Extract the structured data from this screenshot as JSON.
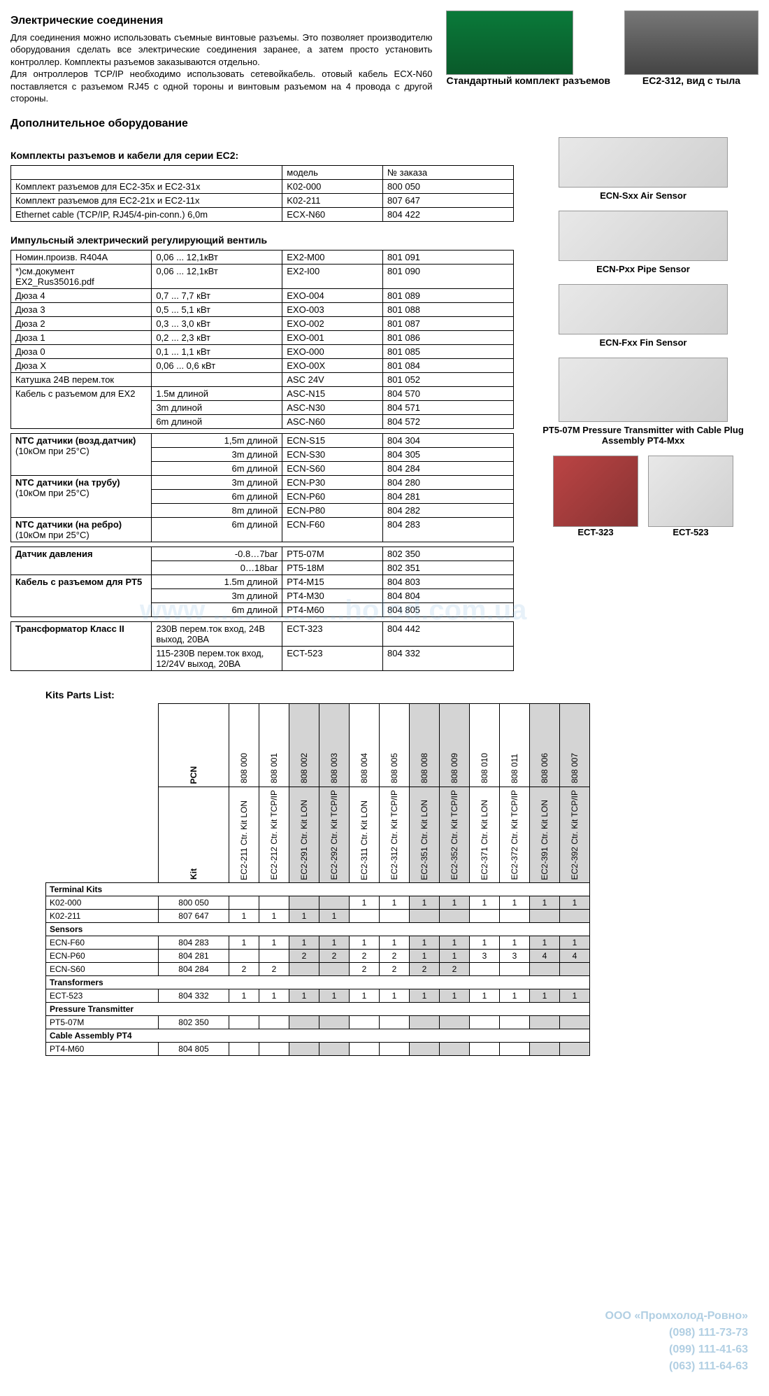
{
  "header": {
    "title": "Электрические соединения",
    "para1": "Для соединения можно использовать съемные винтовые разъемы. Это позволяет производителю оборудования сделать все электрические соединения заранее, а затем просто установить контроллер. Комплекты разъемов заказываются отдельно.",
    "para2": "Для онтроллеров TCP/IP необходимо использовать сетевойкабель. отовый кабель ECX-N60 поставляется с разъемом RJ45 с одной тороны и винтовым разъемом на 4 провода с другой стороны.",
    "img1_label": "Стандартный комплект разъемов",
    "img2_label": "EC2-312, вид с тыла"
  },
  "addl_title": "Дополнительное оборудование",
  "table1": {
    "title": "Комплекты разъемов и кабели для серии EC2:",
    "hdr_model": "модель",
    "hdr_order": "№ заказа",
    "rows": [
      {
        "desc": "Комплект разъемов для EC2-35x и EC2-31x",
        "model": "K02-000",
        "order": "800 050"
      },
      {
        "desc": "Комплект разъемов для EC2-21x и EC2-11x",
        "model": "K02-211",
        "order": "807 647"
      },
      {
        "desc": "Ethernet cable (TCP/IP, RJ45/4-pin-conn.)          6,0m",
        "model": "ECX-N60",
        "order": "804 422"
      }
    ]
  },
  "table2": {
    "title": "Импульсный электрический регулирующий вентиль",
    "rows": [
      {
        "c1": "Номин.произв. R404A",
        "c2": "0,06 ... 12,1кВт",
        "c3": "EX2-M00",
        "c4": "801 091"
      },
      {
        "c1": "*)см.документ EX2_Rus35016.pdf",
        "c2": "0,06 ... 12,1кВт",
        "c3": "EX2-I00",
        "c4": "801 090"
      },
      {
        "c1": "Дюза 4",
        "c2": "0,7 ... 7,7 кВт",
        "c3": "EXO-004",
        "c4": "801 089"
      },
      {
        "c1": "Дюза 3",
        "c2": "0,5 ... 5,1 кВт",
        "c3": "EXO-003",
        "c4": "801 088"
      },
      {
        "c1": "Дюза 2",
        "c2": "0,3 ... 3,0 кВт",
        "c3": "EXO-002",
        "c4": "801 087"
      },
      {
        "c1": "Дюза 1",
        "c2": "0,2 ... 2,3 кВт",
        "c3": "EXO-001",
        "c4": "801 086"
      },
      {
        "c1": "Дюза 0",
        "c2": "0,1 ... 1,1 кВт",
        "c3": "EXO-000",
        "c4": "801 085"
      },
      {
        "c1": "Дюза X",
        "c2": "0,06 ... 0,6 кВт",
        "c3": "EXO-00X",
        "c4": "801 084"
      },
      {
        "c1": "Катушка 24В перем.ток",
        "c2": "",
        "c3": "ASC 24V",
        "c4": "801 052"
      }
    ],
    "cable_label": "Кабель с разъемом для EX2",
    "cable_rows": [
      {
        "c2": "1.5м длиной",
        "c3": "ASC-N15",
        "c4": "804 570"
      },
      {
        "c2": "3m длиной",
        "c3": "ASC-N30",
        "c4": "804 571"
      },
      {
        "c2": "6m длиной",
        "c3": "ASC-N60",
        "c4": "804 572"
      }
    ]
  },
  "table3": {
    "g1_label": "NTC датчики (возд.датчик)",
    "g_sub": "(10кОм при 25°C)",
    "g1_rows": [
      {
        "c2": "1,5m длиной",
        "c3": "ECN-S15",
        "c4": "804 304"
      },
      {
        "c2": "3m длиной",
        "c3": "ECN-S30",
        "c4": "804 305"
      },
      {
        "c2": "6m длиной",
        "c3": "ECN-S60",
        "c4": "804 284"
      }
    ],
    "g2_label": "NTC датчики (на трубу)",
    "g2_rows": [
      {
        "c2": "3m длиной",
        "c3": "ECN-P30",
        "c4": "804 280"
      },
      {
        "c2": "6m длиной",
        "c3": "ECN-P60",
        "c4": "804 281"
      },
      {
        "c2": "8m длиной",
        "c3": "ECN-P80",
        "c4": "804 282"
      }
    ],
    "g3_label": "NTC датчики (на ребро)",
    "g3_rows": [
      {
        "c2": "6m длиной",
        "c3": "ECN-F60",
        "c4": "804 283"
      }
    ]
  },
  "table4": {
    "press_label": "Датчик давления",
    "press_rows": [
      {
        "c2": "-0.8…7bar",
        "c3": "PT5-07M",
        "c4": "802 350"
      },
      {
        "c2": "0…18bar",
        "c3": "PT5-18M",
        "c4": "802 351"
      }
    ],
    "cable_label": "Кабель с разъемом для PT5",
    "cable_rows": [
      {
        "c2": "1.5m длиной",
        "c3": "PT4-M15",
        "c4": "804 803"
      },
      {
        "c2": "3m длиной",
        "c3": "PT4-M30",
        "c4": "804 804"
      },
      {
        "c2": "6m длиной",
        "c3": "PT4-M60",
        "c4": "804 805"
      }
    ]
  },
  "table5": {
    "label": "Трансформатор Класс II",
    "rows": [
      {
        "c2": "230В перем.ток вход, 24В выход, 20ВА",
        "c3": "ECT-323",
        "c4": "804 442"
      },
      {
        "c2": "115-230В перем.ток вход, 12/24V выход, 20ВА",
        "c3": "ECT-523",
        "c4": "804 332"
      }
    ]
  },
  "sensors": {
    "s1": "ECN-Sxx   Air Sensor",
    "s2": "ECN-Pxx   Pipe Sensor",
    "s3": "ECN-Fxx   Fin Sensor",
    "s4": "PT5-07M Pressure Transmitter with Cable Plug Assembly PT4-Mxx",
    "ect1": "ECT-323",
    "ect2": "ECT-523"
  },
  "kits": {
    "title": "Kits Parts List:",
    "hdr_pcn": "PCN",
    "hdr_kit": "Kit",
    "cols": [
      {
        "kit": "EC2-211 Ctr. Kit LON",
        "pcn": "808 000",
        "grey": false
      },
      {
        "kit": "EC2-212 Ctr. Kit TCP/IP",
        "pcn": "808 001",
        "grey": false
      },
      {
        "kit": "EC2-291 Ctr. Kit LON",
        "pcn": "808 002",
        "grey": true
      },
      {
        "kit": "EC2-292 Ctr. Kit TCP/IP",
        "pcn": "808 003",
        "grey": true
      },
      {
        "kit": "EC2-311 Ctr. Kit LON",
        "pcn": "808 004",
        "grey": false
      },
      {
        "kit": "EC2-312 Ctr. Kit TCP/IP",
        "pcn": "808 005",
        "grey": false
      },
      {
        "kit": "EC2-351 Ctr. Kit LON",
        "pcn": "808 008",
        "grey": true
      },
      {
        "kit": "EC2-352 Ctr. Kit TCP/IP",
        "pcn": "808 009",
        "grey": true
      },
      {
        "kit": "EC2-371 Ctr. Kit LON",
        "pcn": "808 010",
        "grey": false
      },
      {
        "kit": "EC2-372 Ctr. Kit TCP/IP",
        "pcn": "808 011",
        "grey": false
      },
      {
        "kit": "EC2-391 Ctr. Kit LON",
        "pcn": "808 006",
        "grey": true
      },
      {
        "kit": "EC2-392 Ctr. Kit TCP/IP",
        "pcn": "808 007",
        "grey": true
      }
    ],
    "sections": [
      {
        "label": "Terminal Kits",
        "rows": [
          {
            "name": "K02-000",
            "pcn": "800 050",
            "v": [
              "",
              "",
              "",
              "",
              "1",
              "1",
              "1",
              "1",
              "1",
              "1",
              "1",
              "1"
            ]
          },
          {
            "name": "K02-211",
            "pcn": "807 647",
            "v": [
              "1",
              "1",
              "1",
              "1",
              "",
              "",
              "",
              "",
              "",
              "",
              "",
              ""
            ]
          }
        ]
      },
      {
        "label": "Sensors",
        "rows": [
          {
            "name": "ECN-F60",
            "pcn": "804 283",
            "v": [
              "1",
              "1",
              "1",
              "1",
              "1",
              "1",
              "1",
              "1",
              "1",
              "1",
              "1",
              "1"
            ]
          },
          {
            "name": "ECN-P60",
            "pcn": "804 281",
            "v": [
              "",
              "",
              "2",
              "2",
              "2",
              "2",
              "1",
              "1",
              "3",
              "3",
              "4",
              "4"
            ]
          },
          {
            "name": "ECN-S60",
            "pcn": "804 284",
            "v": [
              "2",
              "2",
              "",
              "",
              "2",
              "2",
              "2",
              "2",
              "",
              "",
              "",
              ""
            ]
          }
        ]
      },
      {
        "label": "Transformers",
        "rows": [
          {
            "name": "ECT-523",
            "pcn": "804 332",
            "v": [
              "1",
              "1",
              "1",
              "1",
              "1",
              "1",
              "1",
              "1",
              "1",
              "1",
              "1",
              "1"
            ]
          }
        ]
      },
      {
        "label": "Pressure Transmitter",
        "rows": [
          {
            "name": "PT5-07M",
            "pcn": "802 350",
            "v": [
              "",
              "",
              "",
              "",
              "",
              "",
              "",
              "",
              "",
              "",
              "",
              ""
            ]
          }
        ]
      },
      {
        "label": "Cable Assembly PT4",
        "rows": [
          {
            "name": "PT4-M60",
            "pcn": "804 805",
            "v": [
              "",
              "",
              "",
              "",
              "",
              "",
              "",
              "",
              "",
              "",
              "",
              ""
            ]
          }
        ]
      }
    ]
  },
  "watermark": "www .................holod.com.ua",
  "contact": {
    "l1": "ООО «Промхолод-Ровно»",
    "l2": "(098) 111-73-73",
    "l3": "(099) 111-41-63",
    "l4": "(063) 111-64-63"
  }
}
